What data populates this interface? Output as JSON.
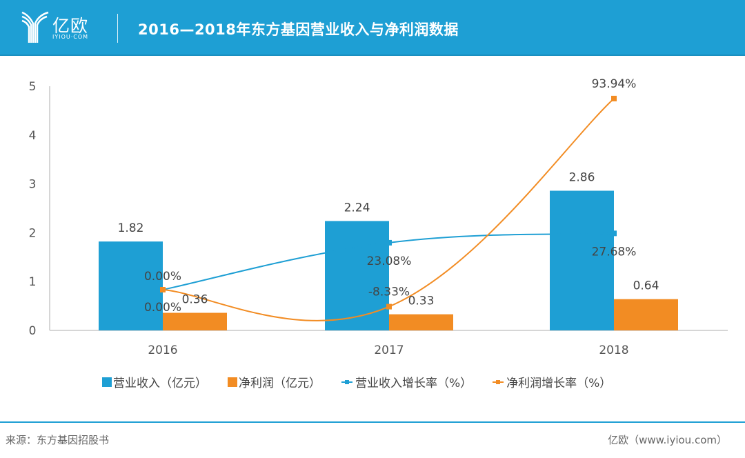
{
  "header": {
    "logo_cn": "亿欧",
    "logo_en": "IYIOU·COM",
    "title": "2016—2018年东方基因营业收入与净利润数据"
  },
  "colors": {
    "header_bg": "#1e9fd4",
    "revenue": "#1e9fd4",
    "profit": "#f28c23",
    "revenue_growth": "#1e9fd4",
    "profit_growth": "#f28c23"
  },
  "chart_data": {
    "type": "bar",
    "title": "2016—2018年东方基因营业收入与净利润数据",
    "categories": [
      "2016",
      "2017",
      "2018"
    ],
    "ylim": [
      0,
      5
    ],
    "yticks": [
      "0",
      "1",
      "2",
      "3",
      "4",
      "5"
    ],
    "y2lim": [
      -20,
      100
    ],
    "grid": false,
    "legend_position": "bottom",
    "series": [
      {
        "name": "营业收入（亿元）",
        "kind": "bar",
        "axis": "primary",
        "values": [
          1.82,
          2.24,
          2.86
        ],
        "labels": [
          "1.82",
          "2.24",
          "2.86"
        ]
      },
      {
        "name": "净利润（亿元）",
        "kind": "bar",
        "axis": "primary",
        "values": [
          0.36,
          0.33,
          0.64
        ],
        "labels": [
          "0.36",
          "0.33",
          "0.64"
        ]
      },
      {
        "name": "营业收入增长率（%）",
        "kind": "line",
        "axis": "secondary",
        "values": [
          0.0,
          23.08,
          27.68
        ],
        "labels": [
          "0.00%",
          "23.08%",
          "27.68%"
        ]
      },
      {
        "name": "净利润增长率（%）",
        "kind": "line",
        "axis": "secondary",
        "values": [
          0.0,
          -8.33,
          93.94
        ],
        "labels": [
          "0.00%",
          "-8.33%",
          "93.94%"
        ]
      }
    ]
  },
  "legend": {
    "items": [
      {
        "label": "营业收入（亿元）",
        "type": "box"
      },
      {
        "label": "净利润（亿元）",
        "type": "box"
      },
      {
        "label": "营业收入增长率（%）",
        "type": "line"
      },
      {
        "label": "净利润增长率（%）",
        "type": "line"
      }
    ]
  },
  "footer": {
    "source": "来源：东方基因招股书",
    "credit": "亿欧（www.iyiou.com）"
  }
}
